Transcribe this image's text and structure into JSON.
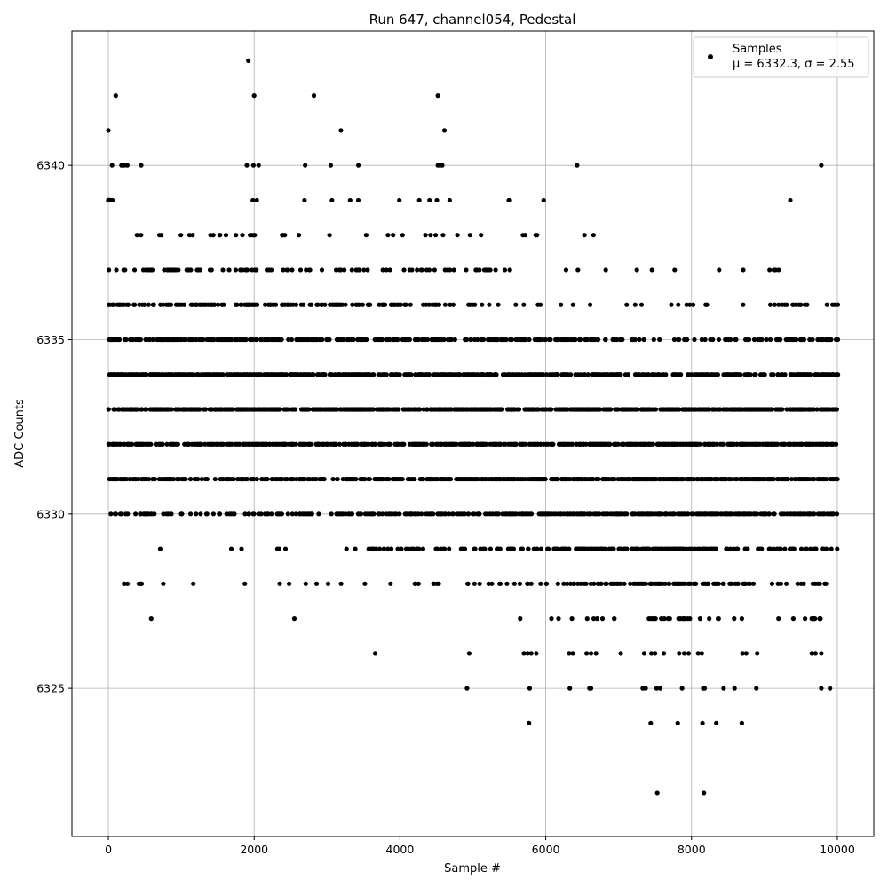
{
  "chart_data": {
    "type": "scatter",
    "title": "Run 647, channel054, Pedestal",
    "xlabel": "Sample #",
    "ylabel": "ADC Counts",
    "xlim": [
      -500,
      10500
    ],
    "ylim": [
      6320.75,
      6343.85
    ],
    "xticks": [
      0,
      2000,
      4000,
      6000,
      8000,
      10000
    ],
    "yticks": [
      6325,
      6330,
      6335,
      6340
    ],
    "grid": true,
    "legend_position": "top-right",
    "series": [
      {
        "name": "Samples",
        "legend_detail": "μ = 6332.3, σ = 2.55",
        "color": "#000000",
        "marker": "circle",
        "n_samples": 10000,
        "level_profiles": [
          {
            "y": 6340,
            "x": [
              50,
              180,
              220,
              260,
              450,
              1900,
              1990,
              2060,
              2700,
              3050,
              3430,
              4520,
              4550,
              4580,
              6430,
              9780
            ]
          },
          {
            "y": 6341,
            "x": [
              0,
              3190,
              4610
            ]
          },
          {
            "y": 6342,
            "x": [
              100,
              2000,
              2820,
              4520
            ]
          },
          {
            "y": 6343,
            "x": [
              1920
            ]
          },
          {
            "y": 6339,
            "x": [
              0,
              2000,
              2700,
              3100,
              3300,
              3400,
              3980,
              4300,
              4400,
              4520,
              4650,
              5500,
              5550,
              5920,
              9330
            ],
            "density": [
              0.35,
              0.04,
              0.03,
              0.03,
              0.02,
              0.01,
              0.01,
              0.01,
              0.01,
              0.01,
              0.01,
              0.005,
              0.005,
              0.005,
              0.005
            ]
          },
          {
            "y": 6338,
            "x": [
              0,
              2000,
              4000,
              6000,
              7000,
              8000,
              9000,
              10000
            ],
            "density": [
              0.12,
              0.18,
              0.07,
              0.04,
              0.01,
              0.005,
              0.02,
              0.0
            ]
          },
          {
            "y": 6337,
            "x": [
              0,
              2000,
              4000,
              6000,
              7000,
              8000,
              9000,
              10000
            ],
            "density": [
              0.3,
              0.35,
              0.22,
              0.05,
              0.03,
              0.01,
              0.07,
              0.0
            ]
          },
          {
            "y": 6336,
            "x": [
              0,
              2000,
              4000,
              6000,
              7000,
              8000,
              9000,
              10000
            ],
            "density": [
              0.55,
              0.6,
              0.45,
              0.15,
              0.1,
              0.08,
              0.18,
              0.3
            ]
          },
          {
            "y": 6335,
            "x": [
              0,
              2000,
              4000,
              6000,
              7000,
              8000,
              9000,
              10000
            ],
            "density": [
              0.85,
              0.85,
              0.7,
              0.55,
              0.35,
              0.2,
              0.45,
              0.6
            ]
          },
          {
            "y": 6334,
            "x": [
              0,
              2000,
              4000,
              6000,
              7000,
              8000,
              9000,
              10000
            ],
            "density": [
              0.95,
              0.95,
              0.9,
              0.85,
              0.6,
              0.55,
              0.8,
              0.85
            ]
          },
          {
            "y": 6333,
            "x": [
              0,
              2000,
              4000,
              6000,
              7000,
              8000,
              9000,
              10000
            ],
            "density": [
              1.0,
              1.0,
              1.0,
              1.0,
              0.95,
              0.95,
              1.0,
              1.0
            ]
          },
          {
            "y": 6332,
            "x": [
              0,
              2000,
              4000,
              6000,
              7000,
              8000,
              9000,
              10000
            ],
            "density": [
              0.95,
              0.95,
              0.95,
              0.95,
              1.0,
              1.0,
              1.0,
              1.0
            ]
          },
          {
            "y": 6331,
            "x": [
              0,
              2000,
              4000,
              6000,
              7000,
              8000,
              9000,
              10000
            ],
            "density": [
              0.75,
              0.6,
              0.9,
              0.95,
              1.0,
              1.0,
              0.95,
              0.95
            ]
          },
          {
            "y": 6330,
            "x": [
              0,
              2000,
              4000,
              6000,
              7000,
              8000,
              9000,
              10000
            ],
            "density": [
              0.4,
              0.4,
              0.55,
              0.8,
              0.95,
              1.0,
              0.85,
              0.8
            ]
          },
          {
            "y": 6329,
            "x": [
              0,
              2000,
              4000,
              6000,
              7000,
              8000,
              9000,
              10000
            ],
            "density": [
              0.06,
              0.04,
              0.2,
              0.55,
              0.8,
              0.9,
              0.45,
              0.4
            ]
          },
          {
            "y": 6328,
            "x": [
              0,
              2000,
              4000,
              6000,
              7000,
              8000,
              9000,
              10000
            ],
            "density": [
              0.06,
              0.03,
              0.08,
              0.3,
              0.55,
              0.75,
              0.2,
              0.25
            ]
          },
          {
            "y": 6327,
            "x": [
              0,
              2000,
              4000,
              6000,
              7000,
              8000,
              9000,
              10000
            ],
            "density": [
              0.02,
              0.01,
              0.01,
              0.08,
              0.25,
              0.3,
              0.05,
              0.15
            ]
          },
          {
            "y": 6326,
            "x": [
              3660,
              4950,
              5700,
              5750,
              5800,
              5870,
              6320,
              6370,
              6560,
              6620,
              6690,
              7030,
              7350,
              7450,
              7500,
              7620,
              7830,
              7900,
              7960,
              8090,
              8140,
              8700,
              8750,
              8900,
              9650,
              9700,
              9780
            ]
          },
          {
            "y": 6325,
            "x": [
              4920,
              5780,
              6330,
              6600,
              6620,
              7330,
              7370,
              7520,
              7570,
              7870,
              8160,
              8180,
              8440,
              8590,
              8890,
              9780,
              9900
            ]
          },
          {
            "y": 6324,
            "x": [
              5770,
              7440,
              7810,
              8150,
              8340,
              8690
            ]
          },
          {
            "y": 6322,
            "x": [
              7530,
              8170
            ]
          }
        ]
      }
    ]
  }
}
